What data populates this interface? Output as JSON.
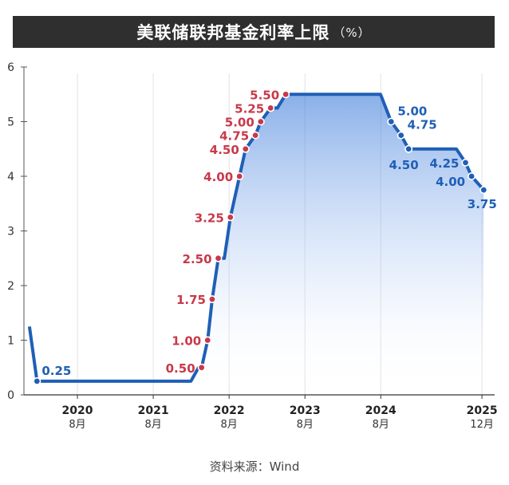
{
  "title": "美联储联邦基金利率上限",
  "title_unit": "（%）",
  "source": "资料来源：Wind",
  "colors": {
    "line": "#1f5fb6",
    "hike": "#c8394a",
    "cut": "#1f5fb6",
    "title_bg": "#2f2f2f"
  },
  "chart_data": {
    "type": "area",
    "ylim": [
      0,
      6
    ],
    "y_ticks": [
      "0",
      "1",
      "2",
      "3",
      "4",
      "5",
      "6"
    ],
    "x_ticks": [
      {
        "year": "2020",
        "month": "8月",
        "t": 2020.583
      },
      {
        "year": "2021",
        "month": "8月",
        "t": 2021.583
      },
      {
        "year": "2022",
        "month": "8月",
        "t": 2022.583
      },
      {
        "year": "2023",
        "month": "8月",
        "t": 2023.583
      },
      {
        "year": "2024",
        "month": "8月",
        "t": 2024.583
      },
      {
        "year": "2025",
        "month": "12月",
        "t": 2025.917
      }
    ],
    "x_range": [
      2019.92,
      2026.0
    ],
    "line": [
      {
        "t": 2019.95,
        "v": 1.25
      },
      {
        "t": 2020.05,
        "v": 0.25
      },
      {
        "t": 2022.08,
        "v": 0.25
      },
      {
        "t": 2022.18,
        "v": 0.5
      },
      {
        "t": 2022.22,
        "v": 0.5
      },
      {
        "t": 2022.3,
        "v": 1.0
      },
      {
        "t": 2022.36,
        "v": 1.75
      },
      {
        "t": 2022.44,
        "v": 2.5
      },
      {
        "t": 2022.52,
        "v": 2.5
      },
      {
        "t": 2022.6,
        "v": 3.25
      },
      {
        "t": 2022.72,
        "v": 4.0
      },
      {
        "t": 2022.8,
        "v": 4.5
      },
      {
        "t": 2022.93,
        "v": 4.75
      },
      {
        "t": 2023.0,
        "v": 5.0
      },
      {
        "t": 2023.13,
        "v": 5.25
      },
      {
        "t": 2023.22,
        "v": 5.25
      },
      {
        "t": 2023.33,
        "v": 5.5
      },
      {
        "t": 2024.58,
        "v": 5.5
      },
      {
        "t": 2024.72,
        "v": 5.0
      },
      {
        "t": 2024.85,
        "v": 4.75
      },
      {
        "t": 2024.95,
        "v": 4.5
      },
      {
        "t": 2025.58,
        "v": 4.5
      },
      {
        "t": 2025.7,
        "v": 4.25
      },
      {
        "t": 2025.78,
        "v": 4.0
      },
      {
        "t": 2025.94,
        "v": 3.75
      }
    ],
    "hikes": [
      {
        "t": 2022.22,
        "v": 0.5,
        "label": "0.50"
      },
      {
        "t": 2022.3,
        "v": 1.0,
        "label": "1.00"
      },
      {
        "t": 2022.36,
        "v": 1.75,
        "label": "1.75"
      },
      {
        "t": 2022.44,
        "v": 2.5,
        "label": "2.50"
      },
      {
        "t": 2022.6,
        "v": 3.25,
        "label": "3.25"
      },
      {
        "t": 2022.72,
        "v": 4.0,
        "label": "4.00"
      },
      {
        "t": 2022.8,
        "v": 4.5,
        "label": "4.50"
      },
      {
        "t": 2022.93,
        "v": 4.75,
        "label": "4.75"
      },
      {
        "t": 2023.0,
        "v": 5.0,
        "label": "5.00"
      },
      {
        "t": 2023.13,
        "v": 5.25,
        "label": "5.25"
      },
      {
        "t": 2023.33,
        "v": 5.5,
        "label": "5.50"
      }
    ],
    "cuts": [
      {
        "t": 2020.05,
        "v": 0.25,
        "label": "0.25"
      },
      {
        "t": 2024.72,
        "v": 5.0,
        "label": "5.00"
      },
      {
        "t": 2024.85,
        "v": 4.75,
        "label": "4.75"
      },
      {
        "t": 2024.95,
        "v": 4.5,
        "label": "4.50"
      },
      {
        "t": 2025.7,
        "v": 4.25,
        "label": "4.25"
      },
      {
        "t": 2025.78,
        "v": 4.0,
        "label": "4.00"
      },
      {
        "t": 2025.94,
        "v": 3.75,
        "label": "3.75"
      }
    ]
  }
}
